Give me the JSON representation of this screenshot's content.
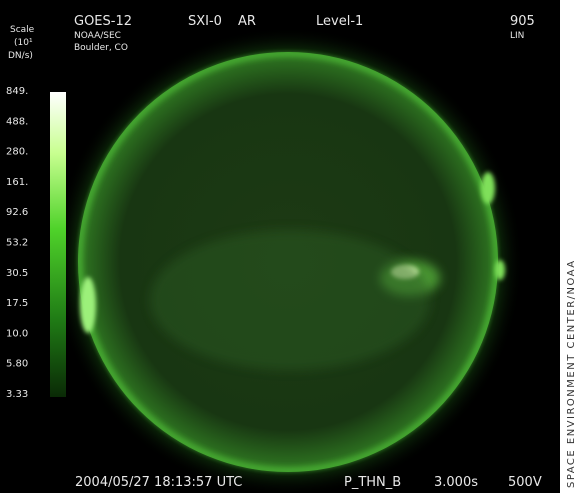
{
  "header": {
    "satellite": "GOES-12",
    "instrument": "SXI-0",
    "target": "AR",
    "level": "Level-1",
    "code": "905",
    "mode": "LIN",
    "agency": "NOAA/SEC",
    "location": "Boulder, CO"
  },
  "scale": {
    "title": [
      "Scale",
      "(10¹",
      "DN/s)"
    ],
    "labels": [
      "849.",
      "488.",
      "280.",
      "161.",
      "92.6",
      "53.2",
      "30.5",
      "17.5",
      "10.0",
      "5.80",
      "3.33"
    ]
  },
  "footer": {
    "timestamp": "2004/05/27 18:13:57 UTC",
    "filter": "P_THN_B",
    "exposure": "3.000s",
    "voltage": "500V"
  },
  "credit": "SPACE ENVIRONMENT CENTER/NOAA"
}
